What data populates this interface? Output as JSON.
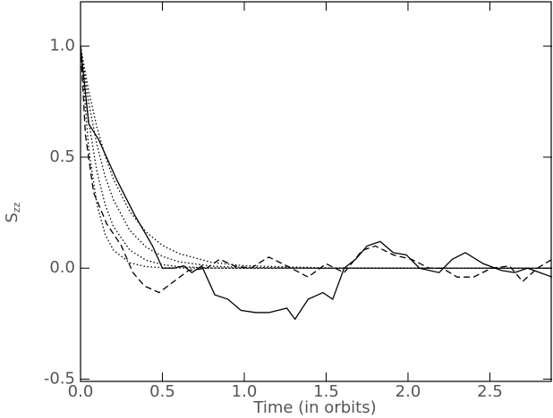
{
  "chart_data": {
    "type": "line",
    "xlabel": "Time (in orbits)",
    "ylabel": "S",
    "ylabel_subscript": "zz",
    "xlim": [
      0,
      2.88
    ],
    "ylim": [
      -0.51,
      1.2
    ],
    "xticks": [
      {
        "value": 0,
        "label": "0.0"
      },
      {
        "value": 0.5,
        "label": "0.5"
      },
      {
        "value": 1,
        "label": "1.0"
      },
      {
        "value": 1.5,
        "label": "1.5"
      },
      {
        "value": 2,
        "label": "2.0"
      },
      {
        "value": 2.5,
        "label": "2.5"
      }
    ],
    "yticks": [
      {
        "value": -0.5,
        "label": "-0.5"
      },
      {
        "value": 0,
        "label": "0.0"
      },
      {
        "value": 0.5,
        "label": "0.5"
      },
      {
        "value": 1,
        "label": "1.0"
      }
    ],
    "grid": false,
    "series": [
      {
        "color": "#000000",
        "style": "solid",
        "x": [
          0,
          0.05,
          0.11,
          0.22,
          0.33,
          0.44,
          0.5,
          0.57,
          0.63,
          0.68,
          0.74,
          0.82,
          0.9,
          0.98,
          1.07,
          1.15,
          1.26,
          1.31,
          1.39,
          1.48,
          1.54,
          1.61,
          1.68,
          1.75,
          1.83,
          1.91,
          1.99,
          2.07,
          2.19,
          2.27,
          2.35,
          2.46,
          2.57,
          2.65,
          2.73,
          2.88
        ],
        "values": [
          1.0,
          0.65,
          0.58,
          0.4,
          0.24,
          0.1,
          0.0,
          0.0,
          0.01,
          -0.02,
          0.01,
          -0.12,
          -0.14,
          -0.19,
          -0.2,
          -0.2,
          -0.18,
          -0.23,
          -0.14,
          -0.11,
          -0.14,
          0.0,
          0.04,
          0.1,
          0.12,
          0.07,
          0.06,
          0.0,
          -0.02,
          0.04,
          0.07,
          0.02,
          -0.01,
          -0.02,
          0.0,
          -0.04
        ]
      },
      {
        "color": "#000000",
        "style": "dashed",
        "x": [
          0,
          0.03,
          0.08,
          0.16,
          0.25,
          0.32,
          0.39,
          0.48,
          0.57,
          0.66,
          0.77,
          0.85,
          0.94,
          1.04,
          1.15,
          1.26,
          1.39,
          1.5,
          1.61,
          1.72,
          1.8,
          1.91,
          2.02,
          2.13,
          2.21,
          2.3,
          2.4,
          2.51,
          2.62,
          2.7,
          2.79,
          2.88
        ],
        "values": [
          1.0,
          0.6,
          0.34,
          0.2,
          0.1,
          -0.02,
          -0.08,
          -0.11,
          -0.06,
          -0.01,
          0.0,
          0.04,
          0.01,
          0.0,
          0.05,
          0.01,
          -0.04,
          0.02,
          -0.02,
          0.08,
          0.1,
          0.06,
          0.04,
          0.0,
          0.0,
          -0.04,
          -0.04,
          0.0,
          0.01,
          -0.06,
          0.0,
          0.04
        ]
      },
      {
        "color": "#000000",
        "style": "dotted",
        "x": [
          0,
          0.05,
          0.1,
          0.15,
          0.2,
          0.3,
          0.4,
          0.5,
          0.6,
          0.8,
          1.0,
          1.5,
          2.88
        ],
        "values": [
          1,
          0.535,
          0.287,
          0.153,
          0.082,
          0.024,
          0.007,
          0.002,
          0.001,
          0,
          0,
          0,
          0
        ]
      },
      {
        "color": "#000000",
        "style": "dotted",
        "x": [
          0,
          0.05,
          0.1,
          0.15,
          0.2,
          0.3,
          0.4,
          0.5,
          0.6,
          0.8,
          1.0,
          1.5,
          2.88
        ],
        "values": [
          1,
          0.659,
          0.435,
          0.287,
          0.189,
          0.082,
          0.036,
          0.016,
          0.007,
          0.001,
          0,
          0,
          0
        ]
      },
      {
        "color": "#000000",
        "style": "dotted",
        "x": [
          0,
          0.05,
          0.1,
          0.15,
          0.2,
          0.3,
          0.4,
          0.5,
          0.6,
          0.8,
          1.0,
          1.5,
          2.88
        ],
        "values": [
          1,
          0.745,
          0.556,
          0.414,
          0.309,
          0.171,
          0.095,
          0.053,
          0.029,
          0.009,
          0.003,
          0,
          0
        ]
      },
      {
        "color": "#000000",
        "style": "dotted",
        "x": [
          0,
          0.05,
          0.1,
          0.15,
          0.2,
          0.3,
          0.4,
          0.5,
          0.6,
          0.8,
          1.0,
          1.5,
          2.88
        ],
        "values": [
          1,
          0.797,
          0.635,
          0.506,
          0.403,
          0.256,
          0.163,
          0.103,
          0.066,
          0.026,
          0.011,
          0.001,
          0
        ]
      }
    ]
  }
}
